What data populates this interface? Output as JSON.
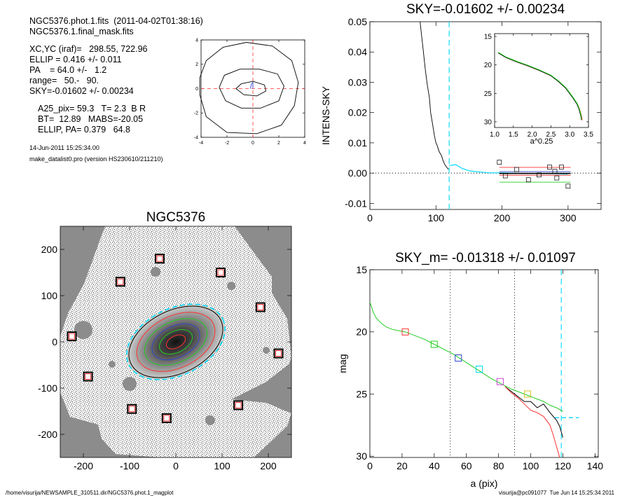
{
  "header": {
    "line1": "NGC5376.phot.1.fits  (2011-04-02T01:38:16)",
    "line2": "NGC5376.1.final_mask.fits",
    "xcyc": "XC,YC (iraf)=   298.55, 722.96",
    "ellip": "ELLIP = 0.416 +/- 0.011",
    "pa": "PA    = 64.0 +/-   1.2",
    "range": "range=   50.-   90.",
    "sky": "SKY=-0.01602 +/- 0.00234",
    "a25": "A25_pix= 59.3   T= 2.3  B R",
    "bt": "BT=  12.89   MABS=-20.05",
    "ellip_pa": "ELLIP, PA= 0.379   64.8",
    "date": "14-Jun-2011 15:25:34.00",
    "program": "make_datalist0.pro (version HS230610/211210)"
  },
  "footer": {
    "path": "/home/visurija/NEWSAMPLE_310511.dir/NGC5376.phot.1_magplot",
    "stamp": "visurija@pc091077  Tue Jun 14 15:25:34 2011"
  },
  "colors": {
    "cyan": "#00d8ff",
    "red": "#ff3030",
    "green": "#22cc22",
    "blue": "#3344cc",
    "grey": "#8c8c8c"
  },
  "chart_data": [
    {
      "id": "contours",
      "type": "line",
      "title": "",
      "xlim": [
        -4,
        4
      ],
      "ylim": [
        -4,
        4
      ],
      "xticks": [
        -4,
        -2,
        0,
        2,
        4
      ],
      "yticks": [
        -4,
        -2,
        0,
        2,
        4
      ],
      "series": [
        {
          "points": [
            [
              -4.1,
              0.9
            ],
            [
              -3.6,
              2.3
            ],
            [
              -2.3,
              3.4
            ],
            [
              -0.5,
              3.8
            ],
            [
              1.5,
              3.5
            ],
            [
              3.0,
              2.3
            ],
            [
              3.5,
              0.5
            ],
            [
              3.2,
              -1.4
            ],
            [
              2.2,
              -3.0
            ],
            [
              0.3,
              -3.7
            ],
            [
              -2.0,
              -3.6
            ],
            [
              -3.6,
              -2.3
            ],
            [
              -4.1,
              -0.5
            ],
            [
              -4.1,
              0.9
            ]
          ]
        },
        {
          "points": [
            [
              -2.6,
              0.1
            ],
            [
              -2.2,
              1.1
            ],
            [
              -1.0,
              1.6
            ],
            [
              0.5,
              1.6
            ],
            [
              1.9,
              1.2
            ],
            [
              2.4,
              0.2
            ],
            [
              2.0,
              -1.0
            ],
            [
              0.6,
              -1.6
            ],
            [
              -0.9,
              -1.6
            ],
            [
              -2.1,
              -1.0
            ],
            [
              -2.6,
              0.1
            ]
          ]
        },
        {
          "points": [
            [
              -1.3,
              0.0
            ],
            [
              -0.9,
              0.4
            ],
            [
              0.0,
              0.6
            ],
            [
              0.9,
              0.3
            ],
            [
              1.0,
              -0.2
            ],
            [
              0.3,
              -0.6
            ],
            [
              -0.7,
              -0.5
            ],
            [
              -1.3,
              0.0
            ]
          ]
        },
        {
          "points": [
            [
              -0.2,
              0.0
            ],
            [
              -0.1,
              0.4
            ],
            [
              0.0,
              0.5
            ]
          ]
        },
        {
          "points": [
            [
              0.0,
              0.0
            ],
            [
              0.0,
              0.55
            ]
          ]
        }
      ],
      "crosshair": [
        0,
        0
      ]
    },
    {
      "id": "intens",
      "type": "line",
      "title": "SKY=-0.01602 +/- 0.00234",
      "xlabel": "",
      "ylabel": "INTENS-SKY",
      "xlim": [
        0,
        350
      ],
      "ylim": [
        -0.012,
        0.05
      ],
      "xticks": [
        0,
        100,
        200,
        300
      ],
      "yticks": [
        0.05,
        0.04,
        0.03,
        0.02,
        0.01,
        0.0,
        -0.01
      ],
      "ytick_labels": [
        "0.05",
        "0.04",
        "0.03",
        "0.02",
        "0.01",
        "0.00",
        "-0.01"
      ],
      "vline": 120,
      "profile": [
        [
          75,
          0.052
        ],
        [
          78,
          0.046
        ],
        [
          81,
          0.04
        ],
        [
          84,
          0.034
        ],
        [
          87,
          0.029
        ],
        [
          90,
          0.025
        ],
        [
          92,
          0.02
        ],
        [
          95,
          0.016
        ],
        [
          98,
          0.012
        ],
        [
          100,
          0.01
        ],
        [
          102,
          0.009
        ],
        [
          105,
          0.007
        ],
        [
          108,
          0.006
        ],
        [
          111,
          0.004
        ],
        [
          113,
          0.003
        ],
        [
          116,
          0.002
        ],
        [
          119,
          0.0012
        ]
      ],
      "sky_profile": [
        [
          120,
          0.0025
        ],
        [
          130,
          0.0028
        ],
        [
          140,
          0.0015
        ],
        [
          150,
          0.0008
        ],
        [
          160,
          0.0005
        ],
        [
          170,
          0.0003
        ],
        [
          180,
          0.0001
        ],
        [
          200,
          0.0001
        ],
        [
          230,
          -0.0001
        ],
        [
          260,
          -0.0001
        ],
        [
          300,
          -0.0003
        ]
      ],
      "squares": [
        [
          196,
          0.0036
        ],
        [
          205,
          -0.0009
        ],
        [
          222,
          0.0012
        ],
        [
          240,
          -0.0022
        ],
        [
          256,
          -0.0006
        ],
        [
          272,
          0.002
        ],
        [
          280,
          0.0006
        ],
        [
          283,
          -0.0016
        ],
        [
          290,
          0.002
        ],
        [
          300,
          -0.0043
        ]
      ],
      "hlines": [
        {
          "y": 0.0019,
          "x": [
            196,
            304
          ],
          "color": "red"
        },
        {
          "y": 0.0005,
          "x": [
            196,
            304
          ],
          "color": "blue"
        },
        {
          "y": -0.0001,
          "x": [
            196,
            304
          ],
          "color": "black"
        },
        {
          "y": -0.0007,
          "x": [
            196,
            304
          ],
          "color": "red"
        },
        {
          "y": -0.003,
          "x": [
            196,
            304
          ],
          "color": "green"
        }
      ]
    },
    {
      "id": "inset",
      "type": "line",
      "title": "",
      "xlabel": "a^0.25",
      "ylabel": "",
      "xlim": [
        1.0,
        3.5
      ],
      "ylim": [
        31,
        14.5
      ],
      "xticks": [
        1.0,
        1.5,
        2.0,
        2.5,
        3.0,
        3.5
      ],
      "xtick_labels": [
        "1.0",
        "1.5",
        "2.0",
        "2.5",
        "3.0",
        "3.5"
      ],
      "yticks": [
        15,
        20,
        25,
        30
      ],
      "series": [
        {
          "x": [
            1.1,
            1.3,
            1.6,
            1.9,
            2.2,
            2.5,
            2.7,
            2.9,
            3.0,
            3.1,
            3.2,
            3.25,
            3.3,
            3.32
          ],
          "y": [
            17.8,
            18.6,
            19.4,
            20.1,
            20.9,
            21.8,
            22.8,
            24.0,
            24.9,
            25.8,
            26.8,
            27.6,
            28.8,
            29.6
          ]
        }
      ]
    },
    {
      "id": "image",
      "type": "scatter",
      "title": "NGC5376",
      "xlim": [
        -250,
        250
      ],
      "ylim": [
        -250,
        250
      ],
      "xticks": [
        -200,
        -100,
        0,
        100,
        200
      ],
      "yticks": [
        200,
        100,
        0,
        -100,
        -200
      ],
      "ellipses": [
        {
          "a": 113,
          "b": 72,
          "color": "cyan"
        },
        {
          "a": 108,
          "b": 68,
          "color": "black"
        },
        {
          "a": 90,
          "b": 56,
          "color": "red"
        },
        {
          "a": 72,
          "b": 44,
          "color": "green"
        },
        {
          "a": 55,
          "b": 34,
          "color": "blue"
        },
        {
          "a": 38,
          "b": 23,
          "color": "green"
        },
        {
          "a": 22,
          "b": 13,
          "color": "red"
        }
      ],
      "ellipse_angle": 26,
      "masked_stars": [
        [
          -35,
          180
        ],
        [
          97,
          150
        ],
        [
          -120,
          130
        ],
        [
          183,
          75
        ],
        [
          -225,
          12
        ],
        [
          222,
          -25
        ],
        [
          -190,
          -75
        ],
        [
          135,
          -137
        ],
        [
          -95,
          -145
        ],
        [
          -20,
          -165
        ]
      ]
    },
    {
      "id": "magprofile",
      "type": "line",
      "title": "SKY_m= -0.01318 +/- 0.01097",
      "xlabel": "a (pix)",
      "ylabel": "mag",
      "xlim": [
        0,
        142
      ],
      "ylim": [
        30.1,
        15
      ],
      "xticks": [
        0,
        20,
        40,
        60,
        80,
        100,
        120,
        140
      ],
      "yticks": [
        15,
        20,
        25,
        30
      ],
      "vlines_dotted": [
        50,
        90
      ],
      "vline_cyan": 119,
      "series": [
        {
          "color": "green",
          "x": [
            0,
            2,
            4,
            7,
            10,
            14,
            18,
            22,
            26,
            30,
            34,
            40,
            46,
            52,
            58,
            64,
            70,
            76,
            82,
            88,
            92,
            96,
            100,
            104,
            108,
            112,
            116,
            120
          ],
          "y": [
            17.6,
            18.4,
            18.9,
            19.3,
            19.6,
            19.8,
            19.9,
            20.0,
            20.2,
            20.4,
            20.6,
            21.0,
            21.4,
            21.8,
            22.3,
            22.8,
            23.3,
            23.8,
            24.2,
            24.6,
            24.8,
            25.0,
            25.2,
            25.4,
            25.6,
            25.9,
            26.1,
            26.4
          ]
        },
        {
          "color": "black",
          "x": [
            84,
            88,
            92,
            96,
            100,
            104,
            108,
            112,
            116,
            118,
            120
          ],
          "y": [
            24.4,
            24.8,
            25.2,
            25.6,
            25.6,
            26.1,
            25.8,
            26.5,
            27.1,
            27.6,
            28.5
          ]
        },
        {
          "color": "red",
          "x": [
            84,
            88,
            92,
            96,
            100,
            104,
            108,
            112,
            114,
            116,
            118
          ],
          "y": [
            24.4,
            24.9,
            25.3,
            25.8,
            26.3,
            26.5,
            26.8,
            27.5,
            28.3,
            29.2,
            30.1
          ]
        }
      ],
      "cyan_tail": {
        "x": [
          115,
          130
        ],
        "y": 26.9
      },
      "squares": [
        {
          "x": 22,
          "y": 20.0,
          "color": "red"
        },
        {
          "x": 40,
          "y": 21.0,
          "color": "green"
        },
        {
          "x": 55,
          "y": 22.1,
          "color": "blue"
        },
        {
          "x": 68,
          "y": 23.0,
          "color": "cyan"
        },
        {
          "x": 81,
          "y": 24.0,
          "color": "magenta"
        },
        {
          "x": 98,
          "y": 25.0,
          "color": "yellow"
        }
      ]
    }
  ]
}
